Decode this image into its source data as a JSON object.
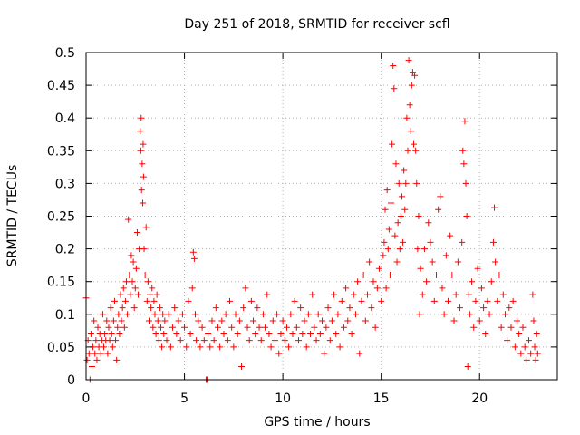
{
  "chart_data": {
    "type": "scatter",
    "title": "Day 251 of 2018, SRMTID for receiver scfl",
    "xlabel": "GPS time / hours",
    "ylabel": "SRMTID / TECUs",
    "xlim": [
      0,
      23.95
    ],
    "ylim": [
      0,
      0.5
    ],
    "x_ticks": [
      0,
      5,
      10,
      15,
      20
    ],
    "x_tick_labels": [
      "0",
      "5",
      "10",
      "15",
      "20"
    ],
    "y_ticks": [
      0,
      0.05,
      0.1,
      0.15,
      0.2,
      0.25,
      0.3,
      0.35,
      0.4,
      0.45,
      0.5
    ],
    "y_tick_labels": [
      "0",
      "0.05",
      "0.1",
      "0.15",
      "0.2",
      "0.25",
      "0.3",
      "0.35",
      "0.4",
      "0.45",
      "0.5"
    ],
    "grid": true,
    "marker": "+",
    "color": "#ff0000",
    "series": [
      {
        "name": "SRMTID",
        "points": [
          [
            0.0,
            0.125
          ],
          [
            0.05,
            0.03
          ],
          [
            0.1,
            0.06
          ],
          [
            0.15,
            0.04
          ],
          [
            0.2,
            0.0
          ],
          [
            0.25,
            0.07
          ],
          [
            0.3,
            0.02
          ],
          [
            0.35,
            0.05
          ],
          [
            0.4,
            0.09
          ],
          [
            0.45,
            0.04
          ],
          [
            0.5,
            0.06
          ],
          [
            0.55,
            0.03
          ],
          [
            0.6,
            0.08
          ],
          [
            0.65,
            0.05
          ],
          [
            0.7,
            0.07
          ],
          [
            0.75,
            0.04
          ],
          [
            0.8,
            0.06
          ],
          [
            0.85,
            0.1
          ],
          [
            0.9,
            0.05
          ],
          [
            0.95,
            0.07
          ],
          [
            1.0,
            0.06
          ],
          [
            1.05,
            0.09
          ],
          [
            1.1,
            0.04
          ],
          [
            1.15,
            0.08
          ],
          [
            1.2,
            0.06
          ],
          [
            1.25,
            0.11
          ],
          [
            1.3,
            0.07
          ],
          [
            1.35,
            0.05
          ],
          [
            1.4,
            0.09
          ],
          [
            1.45,
            0.12
          ],
          [
            1.5,
            0.06
          ],
          [
            1.55,
            0.03
          ],
          [
            1.6,
            0.08
          ],
          [
            1.65,
            0.1
          ],
          [
            1.7,
            0.07
          ],
          [
            1.75,
            0.13
          ],
          [
            1.8,
            0.09
          ],
          [
            1.85,
            0.11
          ],
          [
            1.9,
            0.14
          ],
          [
            1.95,
            0.08
          ],
          [
            2.0,
            0.12
          ],
          [
            2.05,
            0.15
          ],
          [
            2.1,
            0.1
          ],
          [
            2.15,
            0.245
          ],
          [
            2.2,
            0.16
          ],
          [
            2.25,
            0.13
          ],
          [
            2.3,
            0.19
          ],
          [
            2.35,
            0.15
          ],
          [
            2.4,
            0.18
          ],
          [
            2.45,
            0.11
          ],
          [
            2.5,
            0.14
          ],
          [
            2.55,
            0.17
          ],
          [
            2.6,
            0.225
          ],
          [
            2.65,
            0.13
          ],
          [
            2.7,
            0.2
          ],
          [
            2.75,
            0.38
          ],
          [
            2.78,
            0.35
          ],
          [
            2.8,
            0.4
          ],
          [
            2.82,
            0.29
          ],
          [
            2.85,
            0.33
          ],
          [
            2.88,
            0.27
          ],
          [
            2.9,
            0.36
          ],
          [
            2.92,
            0.31
          ],
          [
            2.95,
            0.2
          ],
          [
            3.0,
            0.16
          ],
          [
            3.05,
            0.233
          ],
          [
            3.1,
            0.12
          ],
          [
            3.15,
            0.15
          ],
          [
            3.2,
            0.09
          ],
          [
            3.25,
            0.13
          ],
          [
            3.3,
            0.11
          ],
          [
            3.35,
            0.14
          ],
          [
            3.4,
            0.08
          ],
          [
            3.45,
            0.12
          ],
          [
            3.5,
            0.1
          ],
          [
            3.55,
            0.07
          ],
          [
            3.6,
            0.13
          ],
          [
            3.65,
            0.09
          ],
          [
            3.7,
            0.06
          ],
          [
            3.75,
            0.11
          ],
          [
            3.8,
            0.08
          ],
          [
            3.85,
            0.05
          ],
          [
            3.9,
            0.1
          ],
          [
            3.95,
            0.07
          ],
          [
            4.0,
            0.09
          ],
          [
            4.1,
            0.06
          ],
          [
            4.2,
            0.1
          ],
          [
            4.3,
            0.05
          ],
          [
            4.4,
            0.08
          ],
          [
            4.5,
            0.11
          ],
          [
            4.6,
            0.07
          ],
          [
            4.7,
            0.09
          ],
          [
            4.8,
            0.06
          ],
          [
            4.9,
            0.1
          ],
          [
            5.0,
            0.08
          ],
          [
            5.1,
            0.05
          ],
          [
            5.2,
            0.12
          ],
          [
            5.3,
            0.07
          ],
          [
            5.4,
            0.14
          ],
          [
            5.45,
            0.195
          ],
          [
            5.5,
            0.185
          ],
          [
            5.55,
            0.1
          ],
          [
            5.6,
            0.06
          ],
          [
            5.7,
            0.09
          ],
          [
            5.8,
            0.05
          ],
          [
            5.9,
            0.08
          ],
          [
            6.0,
            0.06
          ],
          [
            6.1,
            0.0
          ],
          [
            6.15,
            0.0
          ],
          [
            6.2,
            0.07
          ],
          [
            6.3,
            0.05
          ],
          [
            6.4,
            0.09
          ],
          [
            6.5,
            0.06
          ],
          [
            6.6,
            0.11
          ],
          [
            6.7,
            0.08
          ],
          [
            6.8,
            0.05
          ],
          [
            6.9,
            0.09
          ],
          [
            7.0,
            0.07
          ],
          [
            7.1,
            0.1
          ],
          [
            7.2,
            0.06
          ],
          [
            7.3,
            0.12
          ],
          [
            7.4,
            0.08
          ],
          [
            7.5,
            0.05
          ],
          [
            7.6,
            0.1
          ],
          [
            7.7,
            0.07
          ],
          [
            7.8,
            0.09
          ],
          [
            7.9,
            0.02
          ],
          [
            8.0,
            0.11
          ],
          [
            8.1,
            0.14
          ],
          [
            8.2,
            0.08
          ],
          [
            8.3,
            0.06
          ],
          [
            8.4,
            0.12
          ],
          [
            8.5,
            0.09
          ],
          [
            8.6,
            0.07
          ],
          [
            8.7,
            0.11
          ],
          [
            8.8,
            0.08
          ],
          [
            8.9,
            0.06
          ],
          [
            9.0,
            0.1
          ],
          [
            9.1,
            0.08
          ],
          [
            9.2,
            0.13
          ],
          [
            9.3,
            0.07
          ],
          [
            9.4,
            0.05
          ],
          [
            9.5,
            0.09
          ],
          [
            9.6,
            0.06
          ],
          [
            9.7,
            0.1
          ],
          [
            9.8,
            0.04
          ],
          [
            9.9,
            0.07
          ],
          [
            10.0,
            0.09
          ],
          [
            10.1,
            0.06
          ],
          [
            10.2,
            0.08
          ],
          [
            10.3,
            0.05
          ],
          [
            10.4,
            0.1
          ],
          [
            10.5,
            0.07
          ],
          [
            10.6,
            0.12
          ],
          [
            10.7,
            0.08
          ],
          [
            10.8,
            0.06
          ],
          [
            10.9,
            0.11
          ],
          [
            11.0,
            0.07
          ],
          [
            11.1,
            0.09
          ],
          [
            11.2,
            0.05
          ],
          [
            11.3,
            0.1
          ],
          [
            11.4,
            0.07
          ],
          [
            11.5,
            0.13
          ],
          [
            11.6,
            0.08
          ],
          [
            11.7,
            0.06
          ],
          [
            11.8,
            0.1
          ],
          [
            11.9,
            0.07
          ],
          [
            12.0,
            0.09
          ],
          [
            12.1,
            0.04
          ],
          [
            12.2,
            0.08
          ],
          [
            12.3,
            0.11
          ],
          [
            12.4,
            0.06
          ],
          [
            12.5,
            0.09
          ],
          [
            12.6,
            0.13
          ],
          [
            12.7,
            0.07
          ],
          [
            12.8,
            0.1
          ],
          [
            12.9,
            0.05
          ],
          [
            13.0,
            0.12
          ],
          [
            13.1,
            0.08
          ],
          [
            13.2,
            0.14
          ],
          [
            13.3,
            0.09
          ],
          [
            13.4,
            0.11
          ],
          [
            13.5,
            0.07
          ],
          [
            13.6,
            0.13
          ],
          [
            13.7,
            0.1
          ],
          [
            13.8,
            0.15
          ],
          [
            13.9,
            0.04
          ],
          [
            14.0,
            0.12
          ],
          [
            14.1,
            0.16
          ],
          [
            14.2,
            0.09
          ],
          [
            14.3,
            0.13
          ],
          [
            14.4,
            0.18
          ],
          [
            14.5,
            0.11
          ],
          [
            14.6,
            0.15
          ],
          [
            14.7,
            0.08
          ],
          [
            14.8,
            0.14
          ],
          [
            14.9,
            0.17
          ],
          [
            15.0,
            0.12
          ],
          [
            15.1,
            0.19
          ],
          [
            15.15,
            0.21
          ],
          [
            15.2,
            0.26
          ],
          [
            15.25,
            0.14
          ],
          [
            15.3,
            0.29
          ],
          [
            15.35,
            0.2
          ],
          [
            15.4,
            0.23
          ],
          [
            15.45,
            0.16
          ],
          [
            15.5,
            0.27
          ],
          [
            15.55,
            0.36
          ],
          [
            15.6,
            0.48
          ],
          [
            15.65,
            0.445
          ],
          [
            15.7,
            0.22
          ],
          [
            15.75,
            0.33
          ],
          [
            15.8,
            0.18
          ],
          [
            15.85,
            0.24
          ],
          [
            15.9,
            0.3
          ],
          [
            15.95,
            0.2
          ],
          [
            16.0,
            0.25
          ],
          [
            16.05,
            0.28
          ],
          [
            16.1,
            0.21
          ],
          [
            16.15,
            0.32
          ],
          [
            16.2,
            0.26
          ],
          [
            16.25,
            0.3
          ],
          [
            16.3,
            0.4
          ],
          [
            16.35,
            0.35
          ],
          [
            16.4,
            0.488
          ],
          [
            16.45,
            0.42
          ],
          [
            16.5,
            0.38
          ],
          [
            16.55,
            0.45
          ],
          [
            16.6,
            0.47
          ],
          [
            16.65,
            0.36
          ],
          [
            16.7,
            0.465
          ],
          [
            16.75,
            0.35
          ],
          [
            16.8,
            0.3
          ],
          [
            16.85,
            0.2
          ],
          [
            16.9,
            0.25
          ],
          [
            16.95,
            0.1
          ],
          [
            17.0,
            0.17
          ],
          [
            17.1,
            0.13
          ],
          [
            17.2,
            0.2
          ],
          [
            17.3,
            0.15
          ],
          [
            17.4,
            0.24
          ],
          [
            17.5,
            0.21
          ],
          [
            17.6,
            0.18
          ],
          [
            17.7,
            0.12
          ],
          [
            17.8,
            0.16
          ],
          [
            17.9,
            0.26
          ],
          [
            18.0,
            0.28
          ],
          [
            18.1,
            0.14
          ],
          [
            18.2,
            0.1
          ],
          [
            18.3,
            0.19
          ],
          [
            18.4,
            0.12
          ],
          [
            18.5,
            0.22
          ],
          [
            18.6,
            0.16
          ],
          [
            18.7,
            0.09
          ],
          [
            18.8,
            0.13
          ],
          [
            18.9,
            0.18
          ],
          [
            19.0,
            0.11
          ],
          [
            19.1,
            0.21
          ],
          [
            19.15,
            0.35
          ],
          [
            19.2,
            0.33
          ],
          [
            19.25,
            0.395
          ],
          [
            19.3,
            0.3
          ],
          [
            19.35,
            0.25
          ],
          [
            19.4,
            0.02
          ],
          [
            19.45,
            0.13
          ],
          [
            19.5,
            0.1
          ],
          [
            19.6,
            0.15
          ],
          [
            19.7,
            0.08
          ],
          [
            19.8,
            0.12
          ],
          [
            19.9,
            0.17
          ],
          [
            20.0,
            0.09
          ],
          [
            20.1,
            0.14
          ],
          [
            20.2,
            0.11
          ],
          [
            20.3,
            0.07
          ],
          [
            20.4,
            0.12
          ],
          [
            20.5,
            0.1
          ],
          [
            20.6,
            0.15
          ],
          [
            20.7,
            0.21
          ],
          [
            20.75,
            0.263
          ],
          [
            20.8,
            0.18
          ],
          [
            20.9,
            0.12
          ],
          [
            21.0,
            0.16
          ],
          [
            21.1,
            0.08
          ],
          [
            21.2,
            0.13
          ],
          [
            21.3,
            0.1
          ],
          [
            21.4,
            0.06
          ],
          [
            21.5,
            0.11
          ],
          [
            21.6,
            0.08
          ],
          [
            21.7,
            0.12
          ],
          [
            21.8,
            0.05
          ],
          [
            21.9,
            0.09
          ],
          [
            22.0,
            0.07
          ],
          [
            22.1,
            0.04
          ],
          [
            22.2,
            0.08
          ],
          [
            22.3,
            0.05
          ],
          [
            22.4,
            0.03
          ],
          [
            22.5,
            0.06
          ],
          [
            22.6,
            0.04
          ],
          [
            22.7,
            0.13
          ],
          [
            22.75,
            0.09
          ],
          [
            22.8,
            0.05
          ],
          [
            22.85,
            0.03
          ],
          [
            22.9,
            0.07
          ],
          [
            22.95,
            0.04
          ]
        ]
      }
    ]
  }
}
